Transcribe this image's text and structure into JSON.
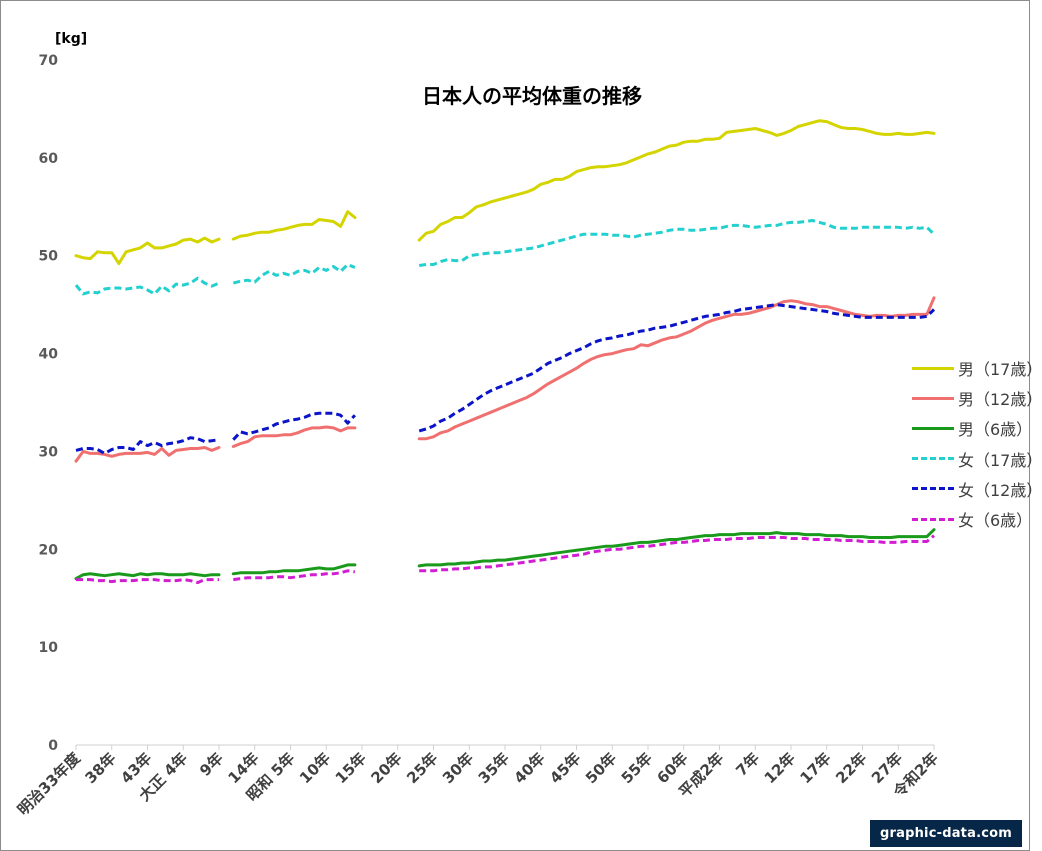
{
  "chart_data": {
    "type": "line",
    "title": "日本人の平均体重の推移",
    "ylabel": "[kg]",
    "ylim": [
      0,
      70
    ],
    "yticks": [
      0,
      10,
      20,
      30,
      40,
      50,
      60,
      70
    ],
    "grid": false,
    "legend": "right",
    "x": {
      "note": "school-year index, 1900 (明治33年度) to 2020 (令和2年)",
      "start_year": 1900,
      "end_year": 2020
    },
    "tick_labels": [
      {
        "year": 1900,
        "label": "明治33年度"
      },
      {
        "year": 1905,
        "label": "38年"
      },
      {
        "year": 1910,
        "label": "43年"
      },
      {
        "year": 1915,
        "label": "大正 4年"
      },
      {
        "year": 1920,
        "label": "9年"
      },
      {
        "year": 1925,
        "label": "14年"
      },
      {
        "year": 1930,
        "label": "昭和 5年"
      },
      {
        "year": 1935,
        "label": "10年"
      },
      {
        "year": 1940,
        "label": "15年"
      },
      {
        "year": 1945,
        "label": "20年"
      },
      {
        "year": 1950,
        "label": "25年"
      },
      {
        "year": 1955,
        "label": "30年"
      },
      {
        "year": 1960,
        "label": "35年"
      },
      {
        "year": 1965,
        "label": "40年"
      },
      {
        "year": 1970,
        "label": "45年"
      },
      {
        "year": 1975,
        "label": "50年"
      },
      {
        "year": 1980,
        "label": "55年"
      },
      {
        "year": 1985,
        "label": "60年"
      },
      {
        "year": 1990,
        "label": "平成2年"
      },
      {
        "year": 1995,
        "label": "7年"
      },
      {
        "year": 2000,
        "label": "12年"
      },
      {
        "year": 2005,
        "label": "17年"
      },
      {
        "year": 2010,
        "label": "22年"
      },
      {
        "year": 2015,
        "label": "27年"
      },
      {
        "year": 2020,
        "label": "令和2年"
      }
    ],
    "series": [
      {
        "name": "男（17歳）",
        "color": "#d4d400",
        "dash": false,
        "segments": [
          {
            "start": 1900,
            "values": [
              50.0,
              49.8,
              49.7,
              50.4,
              50.3,
              50.3,
              49.2,
              50.4,
              50.6,
              50.8,
              51.3,
              50.8,
              50.8,
              51.0,
              51.2,
              51.6,
              51.7,
              51.4,
              51.8,
              51.4,
              51.7
            ]
          },
          {
            "start": 1922,
            "values": [
              51.7,
              52.0,
              52.1,
              52.3,
              52.4,
              52.4,
              52.6,
              52.7,
              52.9,
              53.1,
              53.2,
              53.2,
              53.7,
              53.6,
              53.5,
              53.0,
              54.5,
              53.9
            ]
          },
          {
            "start": 1948,
            "values": [
              51.6,
              52.3,
              52.5,
              53.2,
              53.5,
              53.9,
              53.9,
              54.4,
              55.0,
              55.2,
              55.5,
              55.7,
              55.9,
              56.1,
              56.3,
              56.5,
              56.8,
              57.3,
              57.5,
              57.8,
              57.8,
              58.1,
              58.6,
              58.8,
              59.0,
              59.1,
              59.1,
              59.2,
              59.3,
              59.5,
              59.8,
              60.1,
              60.4,
              60.6,
              60.9,
              61.2,
              61.3,
              61.6,
              61.7,
              61.7,
              61.9,
              61.9,
              62.0,
              62.6,
              62.7,
              62.8,
              62.9,
              63.0,
              62.8,
              62.6,
              62.3,
              62.5,
              62.8,
              63.2,
              63.4,
              63.6,
              63.8,
              63.7,
              63.4,
              63.1,
              63.0,
              63.0,
              62.9,
              62.7,
              62.5,
              62.4,
              62.4,
              62.5,
              62.4,
              62.4,
              62.5,
              62.6,
              62.5
            ]
          }
        ]
      },
      {
        "name": "男（12歳）",
        "color": "#f07070",
        "dash": false,
        "segments": [
          {
            "start": 1900,
            "values": [
              29.0,
              30.0,
              29.8,
              29.8,
              29.7,
              29.5,
              29.7,
              29.8,
              29.8,
              29.8,
              29.9,
              29.7,
              30.3,
              29.6,
              30.1,
              30.2,
              30.3,
              30.3,
              30.4,
              30.1,
              30.4
            ]
          },
          {
            "start": 1922,
            "values": [
              30.5,
              30.8,
              31.0,
              31.5,
              31.6,
              31.6,
              31.6,
              31.7,
              31.7,
              31.9,
              32.2,
              32.4,
              32.4,
              32.5,
              32.4,
              32.1,
              32.4,
              32.4
            ]
          },
          {
            "start": 1948,
            "values": [
              31.3,
              31.3,
              31.5,
              31.9,
              32.1,
              32.5,
              32.8,
              33.1,
              33.4,
              33.7,
              34.0,
              34.3,
              34.6,
              34.9,
              35.2,
              35.5,
              35.9,
              36.4,
              36.9,
              37.3,
              37.7,
              38.1,
              38.5,
              39.0,
              39.4,
              39.7,
              39.9,
              40.0,
              40.2,
              40.4,
              40.5,
              40.9,
              40.8,
              41.1,
              41.4,
              41.6,
              41.7,
              42.0,
              42.3,
              42.7,
              43.1,
              43.4,
              43.6,
              43.8,
              44.0,
              44.0,
              44.1,
              44.3,
              44.5,
              44.7,
              45.0,
              45.3,
              45.4,
              45.3,
              45.1,
              45.0,
              44.8,
              44.8,
              44.6,
              44.4,
              44.2,
              44.0,
              43.9,
              43.8,
              43.9,
              43.9,
              43.8,
              43.9,
              43.9,
              44.0,
              44.0,
              44.0,
              45.7
            ]
          }
        ]
      },
      {
        "name": "男（6歳）",
        "color": "#1a9a1a",
        "dash": false,
        "segments": [
          {
            "start": 1900,
            "values": [
              17.0,
              17.4,
              17.5,
              17.4,
              17.3,
              17.4,
              17.5,
              17.4,
              17.3,
              17.5,
              17.4,
              17.5,
              17.5,
              17.4,
              17.4,
              17.4,
              17.5,
              17.4,
              17.3,
              17.4,
              17.4
            ]
          },
          {
            "start": 1922,
            "values": [
              17.5,
              17.6,
              17.6,
              17.6,
              17.6,
              17.7,
              17.7,
              17.8,
              17.8,
              17.8,
              17.9,
              18.0,
              18.1,
              18.0,
              18.0,
              18.2,
              18.4,
              18.4
            ]
          },
          {
            "start": 1948,
            "values": [
              18.3,
              18.4,
              18.4,
              18.4,
              18.5,
              18.5,
              18.6,
              18.6,
              18.7,
              18.8,
              18.8,
              18.9,
              18.9,
              19.0,
              19.1,
              19.2,
              19.3,
              19.4,
              19.5,
              19.6,
              19.7,
              19.8,
              19.9,
              20.0,
              20.1,
              20.2,
              20.3,
              20.3,
              20.4,
              20.5,
              20.6,
              20.7,
              20.7,
              20.8,
              20.9,
              21.0,
              21.0,
              21.1,
              21.2,
              21.3,
              21.4,
              21.4,
              21.5,
              21.5,
              21.5,
              21.6,
              21.6,
              21.6,
              21.6,
              21.6,
              21.7,
              21.6,
              21.6,
              21.6,
              21.5,
              21.5,
              21.5,
              21.4,
              21.4,
              21.4,
              21.3,
              21.3,
              21.3,
              21.2,
              21.2,
              21.2,
              21.2,
              21.3,
              21.3,
              21.3,
              21.3,
              21.3,
              22.0
            ]
          }
        ]
      },
      {
        "name": "女（17歳）",
        "color": "#22d0d0",
        "dash": true,
        "segments": [
          {
            "start": 1900,
            "values": [
              47.0,
              46.1,
              46.3,
              46.2,
              46.6,
              46.7,
              46.7,
              46.6,
              46.7,
              46.8,
              46.5,
              46.1,
              46.9,
              46.4,
              47.1,
              47.0,
              47.2,
              47.7,
              47.2,
              46.9,
              47.2
            ]
          },
          {
            "start": 1922,
            "values": [
              47.2,
              47.4,
              47.5,
              47.3,
              48.0,
              48.4,
              48.0,
              48.2,
              48.0,
              48.4,
              48.5,
              48.2,
              48.8,
              48.5,
              48.9,
              48.4,
              49.1,
              48.8
            ]
          },
          {
            "start": 1948,
            "values": [
              49.0,
              49.1,
              49.1,
              49.4,
              49.6,
              49.5,
              49.5,
              50.0,
              50.1,
              50.2,
              50.3,
              50.3,
              50.4,
              50.5,
              50.6,
              50.7,
              50.8,
              51.0,
              51.2,
              51.4,
              51.6,
              51.8,
              52.0,
              52.2,
              52.2,
              52.2,
              52.2,
              52.1,
              52.1,
              52.0,
              51.9,
              52.1,
              52.2,
              52.3,
              52.4,
              52.6,
              52.7,
              52.7,
              52.6,
              52.6,
              52.7,
              52.8,
              52.8,
              53.0,
              53.1,
              53.1,
              53.0,
              52.9,
              53.0,
              53.1,
              53.1,
              53.3,
              53.4,
              53.4,
              53.5,
              53.6,
              53.4,
              53.2,
              52.9,
              52.8,
              52.8,
              52.8,
              52.9,
              52.9,
              52.9,
              52.9,
              52.9,
              52.9,
              52.8,
              52.9,
              52.8,
              52.9,
              52.2
            ]
          }
        ]
      },
      {
        "name": "女（12歳）",
        "color": "#0a14c8",
        "dash": true,
        "segments": [
          {
            "start": 1900,
            "values": [
              30.1,
              30.3,
              30.3,
              30.2,
              29.8,
              30.2,
              30.4,
              30.4,
              30.2,
              31.0,
              30.6,
              30.9,
              30.6,
              30.8,
              30.9,
              31.1,
              31.4,
              31.3,
              31.0,
              31.1,
              31.2
            ]
          },
          {
            "start": 1922,
            "values": [
              31.2,
              32.0,
              31.8,
              32.0,
              32.2,
              32.4,
              32.8,
              33.0,
              33.2,
              33.3,
              33.5,
              33.8,
              33.9,
              33.9,
              33.9,
              33.7,
              32.9,
              33.7
            ]
          },
          {
            "start": 1948,
            "values": [
              32.1,
              32.3,
              32.6,
              33.1,
              33.4,
              33.9,
              34.3,
              34.8,
              35.3,
              35.8,
              36.2,
              36.5,
              36.8,
              37.1,
              37.4,
              37.7,
              38.0,
              38.5,
              39.0,
              39.3,
              39.6,
              40.0,
              40.3,
              40.6,
              41.0,
              41.3,
              41.5,
              41.6,
              41.8,
              41.9,
              42.1,
              42.3,
              42.4,
              42.6,
              42.7,
              42.8,
              43.0,
              43.2,
              43.4,
              43.6,
              43.8,
              43.9,
              44.0,
              44.2,
              44.3,
              44.5,
              44.6,
              44.7,
              44.8,
              44.9,
              45.0,
              44.9,
              44.8,
              44.7,
              44.6,
              44.5,
              44.4,
              44.3,
              44.1,
              44.0,
              43.9,
              43.8,
              43.7,
              43.7,
              43.7,
              43.7,
              43.7,
              43.7,
              43.7,
              43.7,
              43.7,
              43.8,
              44.5
            ]
          }
        ]
      },
      {
        "name": "女（6歳）",
        "color": "#d21ed2",
        "dash": true,
        "segments": [
          {
            "start": 1900,
            "values": [
              16.9,
              16.9,
              16.9,
              16.8,
              16.8,
              16.7,
              16.8,
              16.8,
              16.8,
              16.9,
              16.9,
              16.9,
              16.8,
              16.8,
              16.8,
              16.9,
              16.8,
              16.6,
              16.9,
              16.9,
              16.9
            ]
          },
          {
            "start": 1922,
            "values": [
              16.9,
              17.0,
              17.1,
              17.1,
              17.1,
              17.1,
              17.2,
              17.2,
              17.1,
              17.2,
              17.3,
              17.4,
              17.4,
              17.5,
              17.5,
              17.6,
              17.8,
              17.7
            ]
          },
          {
            "start": 1948,
            "values": [
              17.8,
              17.8,
              17.8,
              17.9,
              17.9,
              18.0,
              18.0,
              18.1,
              18.1,
              18.2,
              18.2,
              18.3,
              18.4,
              18.5,
              18.6,
              18.7,
              18.8,
              18.9,
              19.0,
              19.1,
              19.2,
              19.3,
              19.4,
              19.5,
              19.7,
              19.8,
              19.9,
              20.0,
              20.0,
              20.1,
              20.2,
              20.3,
              20.3,
              20.4,
              20.5,
              20.6,
              20.7,
              20.7,
              20.8,
              20.9,
              20.9,
              21.0,
              21.0,
              21.0,
              21.1,
              21.1,
              21.1,
              21.2,
              21.2,
              21.2,
              21.2,
              21.2,
              21.1,
              21.1,
              21.1,
              21.0,
              21.0,
              21.0,
              21.0,
              20.9,
              20.9,
              20.9,
              20.8,
              20.8,
              20.8,
              20.7,
              20.7,
              20.7,
              20.8,
              20.8,
              20.8,
              20.8,
              21.4
            ]
          }
        ]
      }
    ]
  },
  "watermark": "graphic-data.com"
}
